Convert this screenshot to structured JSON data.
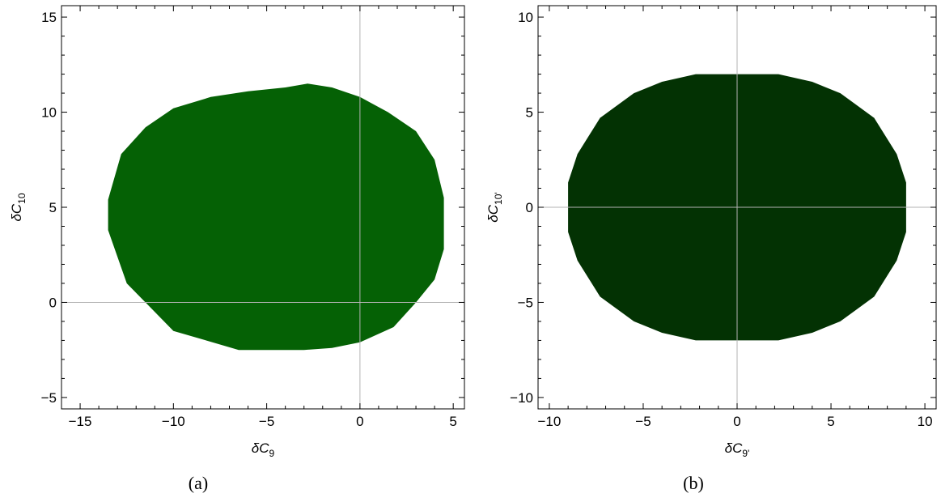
{
  "chart_data": [
    {
      "type": "area",
      "caption": "(a)",
      "xlabel": "δC9",
      "xlabel_parts": {
        "symbol": "δC",
        "subscript": "9"
      },
      "ylabel": "δC10",
      "ylabel_parts": {
        "symbol": "δC",
        "subscript": "10"
      },
      "xlim": [
        -16,
        5.6
      ],
      "ylim": [
        -5.6,
        15.6
      ],
      "xticks": [
        -15,
        -10,
        -5,
        0,
        5
      ],
      "xtick_labels": [
        "−15",
        "−10",
        "−5",
        "0",
        "5"
      ],
      "yticks": [
        -5,
        0,
        5,
        10,
        15
      ],
      "ytick_labels": [
        "−5",
        "0",
        "5",
        "10",
        "15"
      ],
      "grid": "axes-at-zero",
      "fill_color": "#056105",
      "region": {
        "x": [
          -2.8,
          -1.5,
          0.0,
          1.5,
          3.0,
          4.0,
          4.5,
          4.5,
          4.0,
          3.0,
          1.8,
          0.0,
          -1.5,
          -3.0,
          -6.5,
          -10.0,
          -11.5,
          -12.5,
          -13.5,
          -13.5,
          -12.8,
          -11.5,
          -10.0,
          -8.0,
          -6.0,
          -4.0
        ],
        "y": [
          11.5,
          11.3,
          10.8,
          10.0,
          9.0,
          7.5,
          5.5,
          2.8,
          1.2,
          0.0,
          -1.3,
          -2.1,
          -2.4,
          -2.5,
          -2.5,
          -1.5,
          0.0,
          1.0,
          3.8,
          5.4,
          7.8,
          9.2,
          10.2,
          10.8,
          11.1,
          11.3
        ]
      }
    },
    {
      "type": "area",
      "caption": "(b)",
      "xlabel": "δC9'",
      "xlabel_parts": {
        "symbol": "δC",
        "subscript": "9'"
      },
      "ylabel": "δC10'",
      "ylabel_parts": {
        "symbol": "δC",
        "subscript": "10'"
      },
      "xlim": [
        -10.6,
        10.6
      ],
      "ylim": [
        -10.6,
        10.6
      ],
      "xticks": [
        -10,
        -5,
        0,
        5,
        10
      ],
      "xtick_labels": [
        "−10",
        "−5",
        "0",
        "5",
        "10"
      ],
      "yticks": [
        -10,
        -5,
        0,
        5,
        10
      ],
      "ytick_labels": [
        "−10",
        "−5",
        "0",
        "5",
        "10"
      ],
      "grid": "axes-at-zero",
      "fill_color": "#033203",
      "region": {
        "x": [
          -2.2,
          2.2,
          4.0,
          5.5,
          7.3,
          8.5,
          9.0,
          9.0,
          8.5,
          7.3,
          5.5,
          4.0,
          2.2,
          -2.2,
          -4.0,
          -5.5,
          -7.3,
          -8.5,
          -9.0,
          -9.0,
          -8.5,
          -7.3,
          -5.5,
          -4.0
        ],
        "y": [
          7.0,
          7.0,
          6.6,
          6.0,
          4.7,
          2.8,
          1.3,
          -1.3,
          -2.8,
          -4.7,
          -6.0,
          -6.6,
          -7.0,
          -7.0,
          -6.6,
          -6.0,
          -4.7,
          -2.8,
          -1.3,
          1.3,
          2.8,
          4.7,
          6.0,
          6.6
        ]
      }
    }
  ]
}
